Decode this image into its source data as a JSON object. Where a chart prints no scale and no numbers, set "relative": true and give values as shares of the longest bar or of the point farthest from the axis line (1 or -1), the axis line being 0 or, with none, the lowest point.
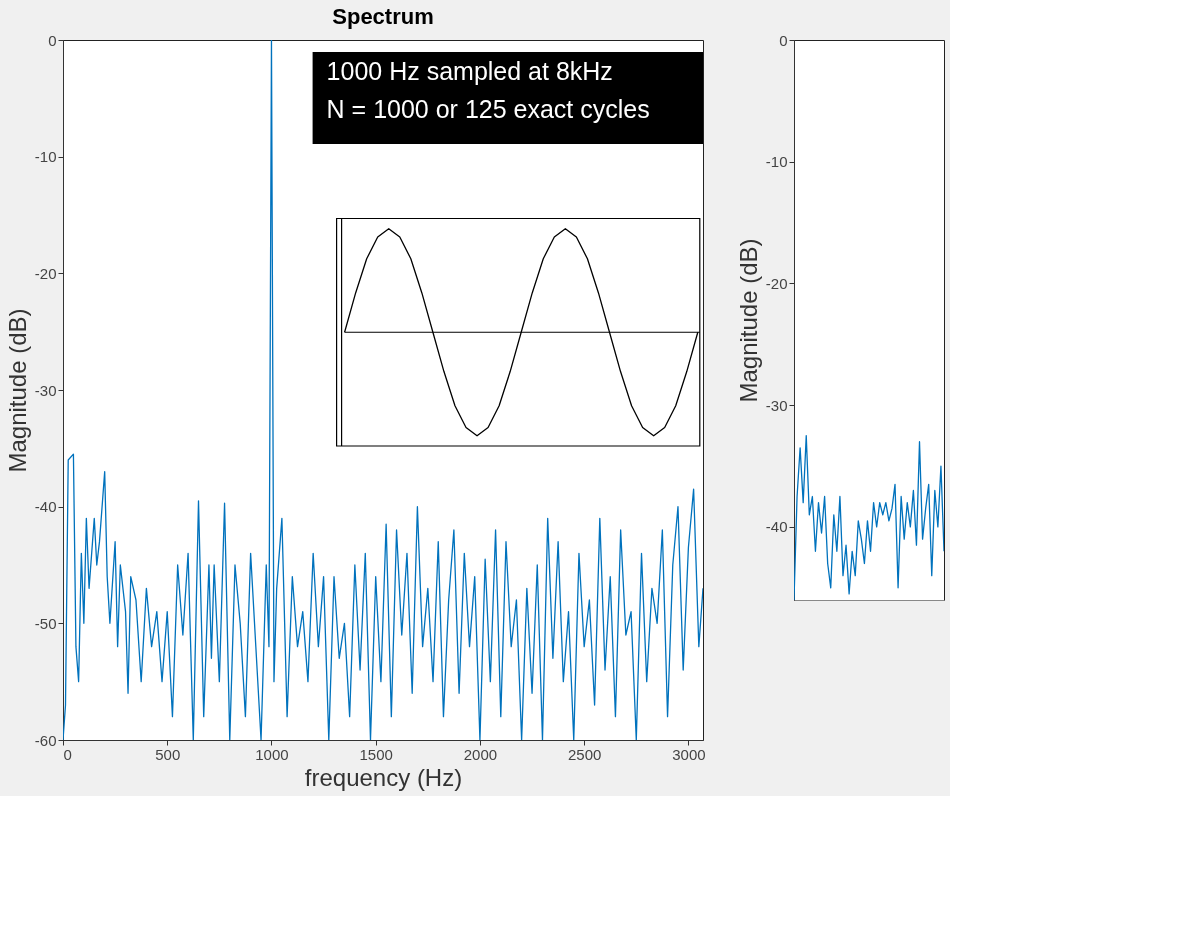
{
  "chart_data": [
    {
      "type": "line",
      "title": "Spectrum",
      "xlabel": "frequency (Hz)",
      "ylabel": "Magnitude (dB)",
      "xlim": [
        0,
        3070
      ],
      "ylim": [
        -60,
        0
      ],
      "xticks": [
        0,
        500,
        1000,
        1500,
        2000,
        2500,
        3000
      ],
      "yticks": [
        0,
        -10,
        -20,
        -30,
        -40,
        -50,
        -60
      ],
      "annotations": [
        "1000 Hz sampled at 8kHz",
        "N = 1000 or 125 exact cycles"
      ],
      "series": [
        {
          "color": "#0072bd",
          "x": [
            0,
            12,
            25,
            50,
            62,
            75,
            88,
            100,
            112,
            125,
            150,
            162,
            175,
            200,
            212,
            225,
            250,
            262,
            275,
            300,
            312,
            325,
            350,
            375,
            400,
            425,
            450,
            475,
            500,
            525,
            550,
            575,
            600,
            625,
            650,
            675,
            700,
            712,
            725,
            750,
            775,
            800,
            825,
            850,
            875,
            900,
            925,
            950,
            975,
            988,
            1000,
            1012,
            1025,
            1050,
            1075,
            1100,
            1125,
            1150,
            1175,
            1200,
            1225,
            1250,
            1275,
            1300,
            1325,
            1350,
            1375,
            1400,
            1425,
            1450,
            1475,
            1500,
            1525,
            1550,
            1575,
            1600,
            1625,
            1650,
            1675,
            1700,
            1725,
            1750,
            1775,
            1800,
            1825,
            1850,
            1875,
            1900,
            1925,
            1950,
            1975,
            2000,
            2025,
            2050,
            2075,
            2100,
            2125,
            2150,
            2175,
            2200,
            2225,
            2250,
            2275,
            2300,
            2325,
            2350,
            2375,
            2400,
            2425,
            2450,
            2475,
            2500,
            2525,
            2550,
            2575,
            2600,
            2625,
            2650,
            2675,
            2700,
            2725,
            2750,
            2775,
            2800,
            2825,
            2850,
            2875,
            2900,
            2925,
            2950,
            2975,
            3000,
            3025,
            3050,
            3070
          ],
          "values": [
            -60,
            -57,
            -36,
            -35.5,
            -52,
            -55,
            -44,
            -50,
            -41,
            -47,
            -41,
            -45,
            -43,
            -37,
            -46,
            -50,
            -43,
            -52,
            -45,
            -49,
            -56,
            -46,
            -48,
            -55,
            -47,
            -52,
            -49,
            -55,
            -49,
            -58,
            -45,
            -51,
            -44,
            -60,
            -39.5,
            -58,
            -45,
            -53,
            -45,
            -55,
            -39.7,
            -60,
            -45,
            -50,
            -58,
            -44,
            -52,
            -60,
            -45,
            -52,
            0,
            -55,
            -47,
            -41,
            -58,
            -46,
            -52,
            -49,
            -55,
            -44,
            -52,
            -46,
            -60,
            -46,
            -53,
            -50,
            -58,
            -45,
            -54,
            -44,
            -60,
            -46,
            -55,
            -41.5,
            -58,
            -42,
            -51,
            -44,
            -56,
            -40,
            -52,
            -47,
            -55,
            -43,
            -58,
            -48,
            -42,
            -56,
            -44,
            -52,
            -46,
            -60,
            -44.5,
            -55,
            -42,
            -58,
            -43,
            -52,
            -48,
            -60,
            -47,
            -56,
            -45,
            -60,
            -41,
            -53,
            -43,
            -55,
            -49,
            -60,
            -44,
            -52,
            -48,
            -57,
            -41,
            -54,
            -46,
            -58,
            -42,
            -51,
            -49,
            -60,
            -44,
            -55,
            -47,
            -50,
            -42,
            -58,
            -45,
            -40,
            -54,
            -43.5,
            -38.5,
            -52,
            -47
          ]
        }
      ]
    },
    {
      "type": "line",
      "relative": true,
      "categories": [
        null,
        null,
        null,
        null,
        null,
        null,
        null,
        null,
        null,
        null,
        null,
        null,
        null,
        null,
        null,
        null,
        null,
        null,
        null,
        null,
        null,
        null,
        null,
        null,
        null,
        null,
        null,
        null,
        null,
        null,
        null,
        null,
        null
      ],
      "series": [
        {
          "color": "#000000",
          "values": [
            0,
            0.38,
            0.71,
            0.92,
            1,
            0.92,
            0.71,
            0.38,
            0,
            -0.38,
            -0.71,
            -0.92,
            -1,
            -0.92,
            -0.71,
            -0.38,
            0,
            0.38,
            0.71,
            0.92,
            1,
            0.92,
            0.71,
            0.38,
            0,
            -0.38,
            -0.71,
            -0.92,
            -1,
            -0.92,
            -0.71,
            -0.38,
            0
          ]
        }
      ]
    },
    {
      "type": "line",
      "ylabel": "Magnitude (dB)",
      "ylim": [
        -46,
        0
      ],
      "yticks": [
        0,
        -10,
        -20,
        -30,
        -40
      ],
      "tick_labels": "y",
      "categories": [
        null,
        null,
        null,
        null,
        null,
        null,
        null,
        null,
        null,
        null,
        null,
        null,
        null,
        null,
        null,
        null,
        null,
        null,
        null,
        null,
        null,
        null,
        null,
        null,
        null,
        null,
        null,
        null,
        null,
        null,
        null,
        null,
        null,
        null,
        null,
        null,
        null,
        null,
        null,
        null,
        null,
        null,
        null,
        null,
        null,
        null,
        null,
        null,
        null,
        null
      ],
      "series": [
        {
          "color": "#0072bd",
          "values": [
            -46,
            -37.5,
            -33.5,
            -38,
            -32.5,
            -39,
            -37.5,
            -42,
            -38,
            -40.5,
            -37.5,
            -43,
            -45,
            -39,
            -42,
            -37.5,
            -44,
            -41.5,
            -45.5,
            -42,
            -44,
            -39.5,
            -41,
            -43,
            -39.5,
            -42,
            -38,
            -40,
            -38,
            -39,
            -38,
            -39.5,
            -38.5,
            -36.5,
            -45,
            -37.5,
            -41,
            -38,
            -40,
            -37,
            -41.5,
            -33,
            -41,
            -38.5,
            -36.5,
            -44,
            -37,
            -40,
            -35,
            -42
          ]
        }
      ]
    }
  ]
}
